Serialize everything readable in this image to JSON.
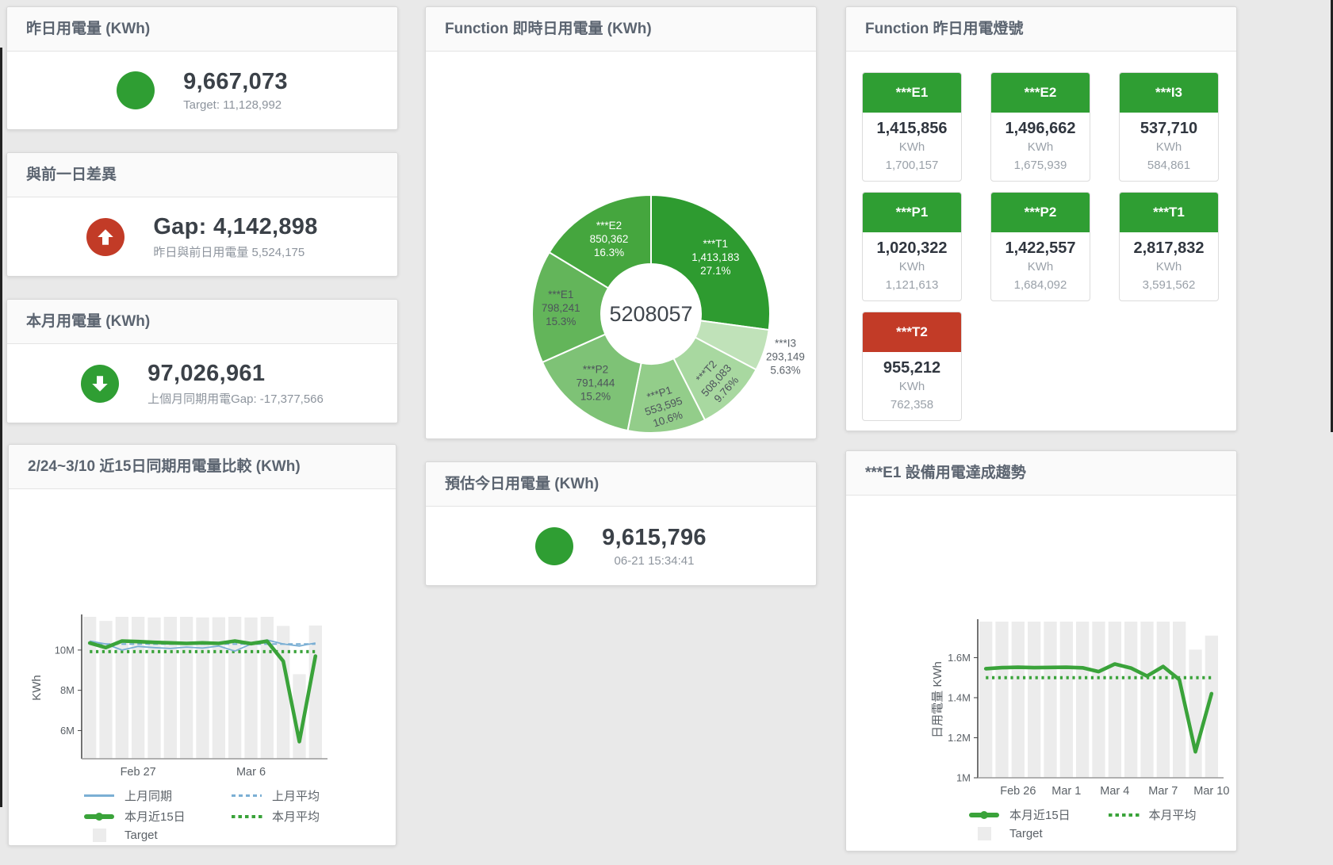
{
  "colors": {
    "accent_green": "#2f9e33",
    "accent_red": "#c23b27",
    "line_green": "#3aa33a",
    "line_blue": "#7bafd4",
    "target_gray": "#ececec"
  },
  "panels": {
    "yesterday": {
      "title": "昨日用電量 (KWh)",
      "value": "9,667,073",
      "subtitle": "Target: 11,128,992"
    },
    "day_gap": {
      "title": "與前一日差異",
      "value": "Gap: 4,142,898",
      "subtitle": "昨日與前日用電量 5,524,175"
    },
    "month": {
      "title": "本月用電量 (KWh)",
      "value": "97,026,961",
      "subtitle": "上個月同期用電Gap: -17,377,566"
    },
    "estimate": {
      "title": "預估今日用電量 (KWh)",
      "value": "9,615,796",
      "subtitle": "06-21 15:34:41"
    },
    "lights": {
      "title": "Function 昨日用電燈號",
      "unit": "KWh",
      "tiles": [
        {
          "label": "***E1",
          "value": "1,415,856",
          "target": "1,700,157",
          "status": "green"
        },
        {
          "label": "***E2",
          "value": "1,496,662",
          "target": "1,675,939",
          "status": "green"
        },
        {
          "label": "***I3",
          "value": "537,710",
          "target": "584,861",
          "status": "green"
        },
        {
          "label": "***P1",
          "value": "1,020,322",
          "target": "1,121,613",
          "status": "green"
        },
        {
          "label": "***P2",
          "value": "1,422,557",
          "target": "1,684,092",
          "status": "green"
        },
        {
          "label": "***T1",
          "value": "2,817,832",
          "target": "3,591,562",
          "status": "green"
        },
        {
          "label": "***T2",
          "value": "955,212",
          "target": "762,358",
          "status": "red"
        }
      ]
    }
  },
  "chart_data": [
    {
      "id": "realtime_donut",
      "type": "pie",
      "title": "Function 即時日用電量 (KWh)",
      "center_total": "5208057",
      "slices": [
        {
          "name": "***T1",
          "value": 1413183,
          "pct": "27.1%",
          "color": "#2e9b30",
          "text_color": "#ffffff"
        },
        {
          "name": "***I3",
          "value": 293149,
          "pct": "5.63%",
          "color": "#c0e2b9",
          "text_color": "#5d646b"
        },
        {
          "name": "***T2",
          "value": 508083,
          "pct": "9.76%",
          "color": "#a8d8a0",
          "text_color": "#4d545b"
        },
        {
          "name": "***P1",
          "value": 553595,
          "pct": "10.6%",
          "color": "#93cd8a",
          "text_color": "#4d545b"
        },
        {
          "name": "***P2",
          "value": 791444,
          "pct": "15.2%",
          "color": "#7ec276",
          "text_color": "#4d545b"
        },
        {
          "name": "***E1",
          "value": 798241,
          "pct": "15.3%",
          "color": "#63b55a",
          "text_color": "#4d545b"
        },
        {
          "name": "***E2",
          "value": 850362,
          "pct": "16.3%",
          "color": "#45a63e",
          "text_color": "#ffffff"
        }
      ]
    },
    {
      "id": "compare15",
      "type": "line",
      "title": "2/24~3/10 近15日同期用電量比較 (KWh)",
      "ylabel": "KWh",
      "ylim": [
        4600000,
        11650000
      ],
      "yticks": [
        {
          "v": 6000000,
          "label": "6M"
        },
        {
          "v": 8000000,
          "label": "8M"
        },
        {
          "v": 10000000,
          "label": "10M"
        }
      ],
      "xticks": [
        {
          "i": 3,
          "label": "Feb 27"
        },
        {
          "i": 10,
          "label": "Mar 6"
        }
      ],
      "x_count": 15,
      "target": [
        11650000,
        11450000,
        11650000,
        11650000,
        11620000,
        11650000,
        11650000,
        11620000,
        11630000,
        11650000,
        11620000,
        11650000,
        11200000,
        8800000,
        11220000
      ],
      "series": [
        {
          "name": "上月同期",
          "marker": "line",
          "style": "thin",
          "color": "#7bafd4",
          "values": [
            10450000,
            10300000,
            10000000,
            10180000,
            10120000,
            10080000,
            10150000,
            10100000,
            10200000,
            9950000,
            10300000,
            10500000,
            10300000,
            10200000,
            10350000
          ]
        },
        {
          "name": "上月平均",
          "marker": "dash",
          "style": "dash",
          "color": "#7bafd4",
          "const": 10300000
        },
        {
          "name": "本月近15日",
          "marker": "thick",
          "style": "thick",
          "color": "#3aa33a",
          "values": [
            10350000,
            10120000,
            10450000,
            10420000,
            10380000,
            10360000,
            10330000,
            10360000,
            10330000,
            10450000,
            10320000,
            10440000,
            9450000,
            5450000,
            9700000
          ]
        },
        {
          "name": "本月平均",
          "marker": "dots",
          "style": "dots",
          "color": "#3aa33a",
          "const": 9920000
        }
      ],
      "legend_extra": [
        {
          "label": "Target",
          "marker": "square",
          "color": "#ececec"
        }
      ]
    },
    {
      "id": "e1_trend",
      "type": "line",
      "title": "***E1 設備用電達成趨勢",
      "ylabel": "日用電量 KWh",
      "ylim": [
        1000000,
        1780000
      ],
      "yticks": [
        {
          "v": 1000000,
          "label": "1M"
        },
        {
          "v": 1200000,
          "label": "1.2M"
        },
        {
          "v": 1400000,
          "label": "1.4M"
        },
        {
          "v": 1600000,
          "label": "1.6M"
        }
      ],
      "xticks": [
        {
          "i": 2,
          "label": "Feb 26"
        },
        {
          "i": 5,
          "label": "Mar 1"
        },
        {
          "i": 8,
          "label": "Mar 4"
        },
        {
          "i": 11,
          "label": "Mar 7"
        },
        {
          "i": 14,
          "label": "Mar 10"
        }
      ],
      "x_count": 15,
      "target": [
        1780000,
        1780000,
        1780000,
        1780000,
        1780000,
        1780000,
        1780000,
        1780000,
        1780000,
        1780000,
        1780000,
        1780000,
        1780000,
        1640000,
        1710000
      ],
      "series": [
        {
          "name": "本月近15日",
          "marker": "thick",
          "style": "thick",
          "color": "#3aa33a",
          "values": [
            1545000,
            1550000,
            1552000,
            1550000,
            1551000,
            1552000,
            1549000,
            1530000,
            1568000,
            1548000,
            1508000,
            1556000,
            1490000,
            1130000,
            1420000
          ]
        },
        {
          "name": "本月平均",
          "marker": "dots",
          "style": "dots",
          "color": "#3aa33a",
          "const": 1500000
        }
      ],
      "legend_extra": [
        {
          "label": "Target",
          "marker": "square",
          "color": "#ececec"
        }
      ]
    }
  ]
}
